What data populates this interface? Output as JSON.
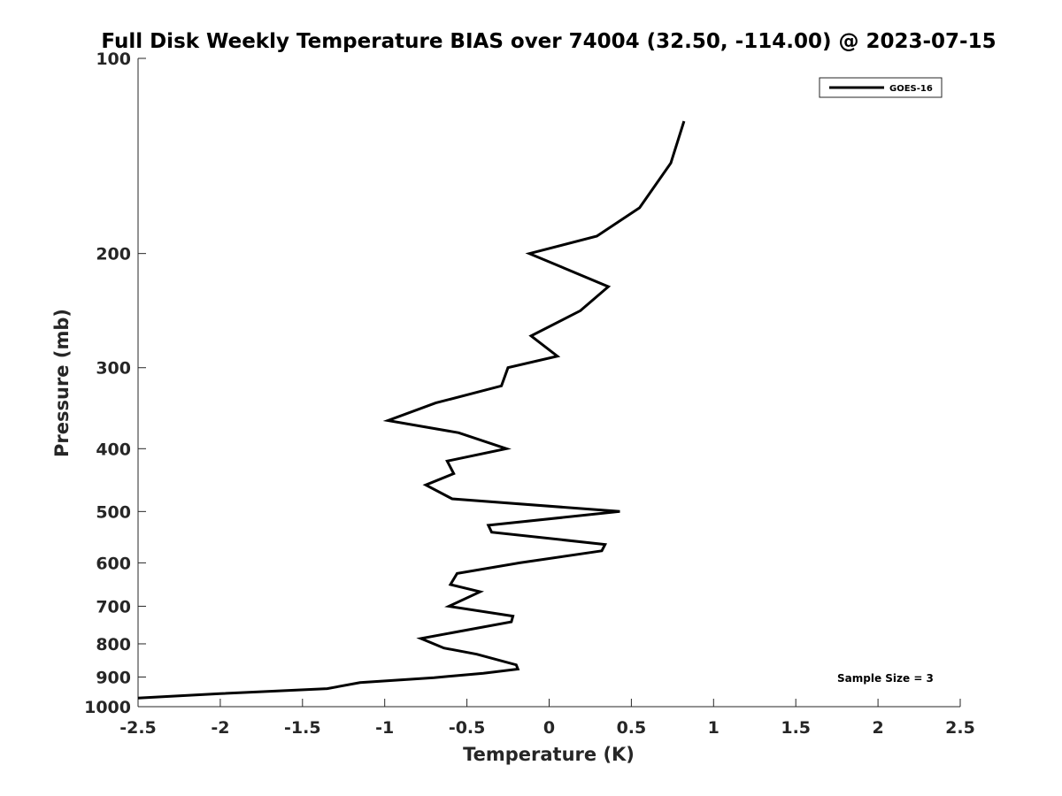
{
  "chart_data": {
    "type": "line",
    "title": "Full Disk Weekly Temperature BIAS over 74004 (32.50, -114.00) @ 2023-07-15",
    "xlabel": "Temperature (K)",
    "ylabel": "Pressure (mb)",
    "xlim": [
      -2.5,
      2.5
    ],
    "ylim": [
      100,
      1000
    ],
    "y_scale": "log",
    "y_reversed": true,
    "x_ticks": [
      "-2.5",
      "-2",
      "-1.5",
      "-1",
      "-0.5",
      "0",
      "0.5",
      "1",
      "1.5",
      "2",
      "2.5"
    ],
    "y_ticks": [
      "100",
      "200",
      "300",
      "400",
      "500",
      "600",
      "700",
      "800",
      "900",
      "1000"
    ],
    "grid": false,
    "legend_position": "top-right",
    "annotation": "Sample Size = 3",
    "series": [
      {
        "name": "GOES-16",
        "color": "#000000",
        "points": [
          {
            "x": 0.82,
            "p": 125
          },
          {
            "x": 0.74,
            "p": 145
          },
          {
            "x": 0.55,
            "p": 170
          },
          {
            "x": 0.29,
            "p": 188
          },
          {
            "x": -0.12,
            "p": 200
          },
          {
            "x": 0.36,
            "p": 225
          },
          {
            "x": 0.19,
            "p": 245
          },
          {
            "x": -0.11,
            "p": 268
          },
          {
            "x": 0.05,
            "p": 288
          },
          {
            "x": -0.25,
            "p": 300
          },
          {
            "x": -0.29,
            "p": 320
          },
          {
            "x": -0.69,
            "p": 340
          },
          {
            "x": -0.98,
            "p": 362
          },
          {
            "x": -0.55,
            "p": 378
          },
          {
            "x": -0.26,
            "p": 400
          },
          {
            "x": -0.62,
            "p": 418
          },
          {
            "x": -0.58,
            "p": 437
          },
          {
            "x": -0.75,
            "p": 455
          },
          {
            "x": -0.59,
            "p": 478
          },
          {
            "x": 0.43,
            "p": 500
          },
          {
            "x": -0.37,
            "p": 525
          },
          {
            "x": -0.35,
            "p": 538
          },
          {
            "x": 0.34,
            "p": 562
          },
          {
            "x": 0.32,
            "p": 575
          },
          {
            "x": -0.18,
            "p": 600
          },
          {
            "x": -0.56,
            "p": 623
          },
          {
            "x": -0.6,
            "p": 648
          },
          {
            "x": -0.42,
            "p": 665
          },
          {
            "x": -0.61,
            "p": 700
          },
          {
            "x": -0.22,
            "p": 725
          },
          {
            "x": -0.23,
            "p": 740
          },
          {
            "x": -0.78,
            "p": 785
          },
          {
            "x": -0.64,
            "p": 812
          },
          {
            "x": -0.44,
            "p": 830
          },
          {
            "x": -0.2,
            "p": 862
          },
          {
            "x": -0.19,
            "p": 875
          },
          {
            "x": -0.4,
            "p": 888
          },
          {
            "x": -0.7,
            "p": 902
          },
          {
            "x": -1.15,
            "p": 918
          },
          {
            "x": -1.35,
            "p": 938
          },
          {
            "x": -2.0,
            "p": 955
          },
          {
            "x": -2.5,
            "p": 970
          }
        ]
      }
    ]
  }
}
